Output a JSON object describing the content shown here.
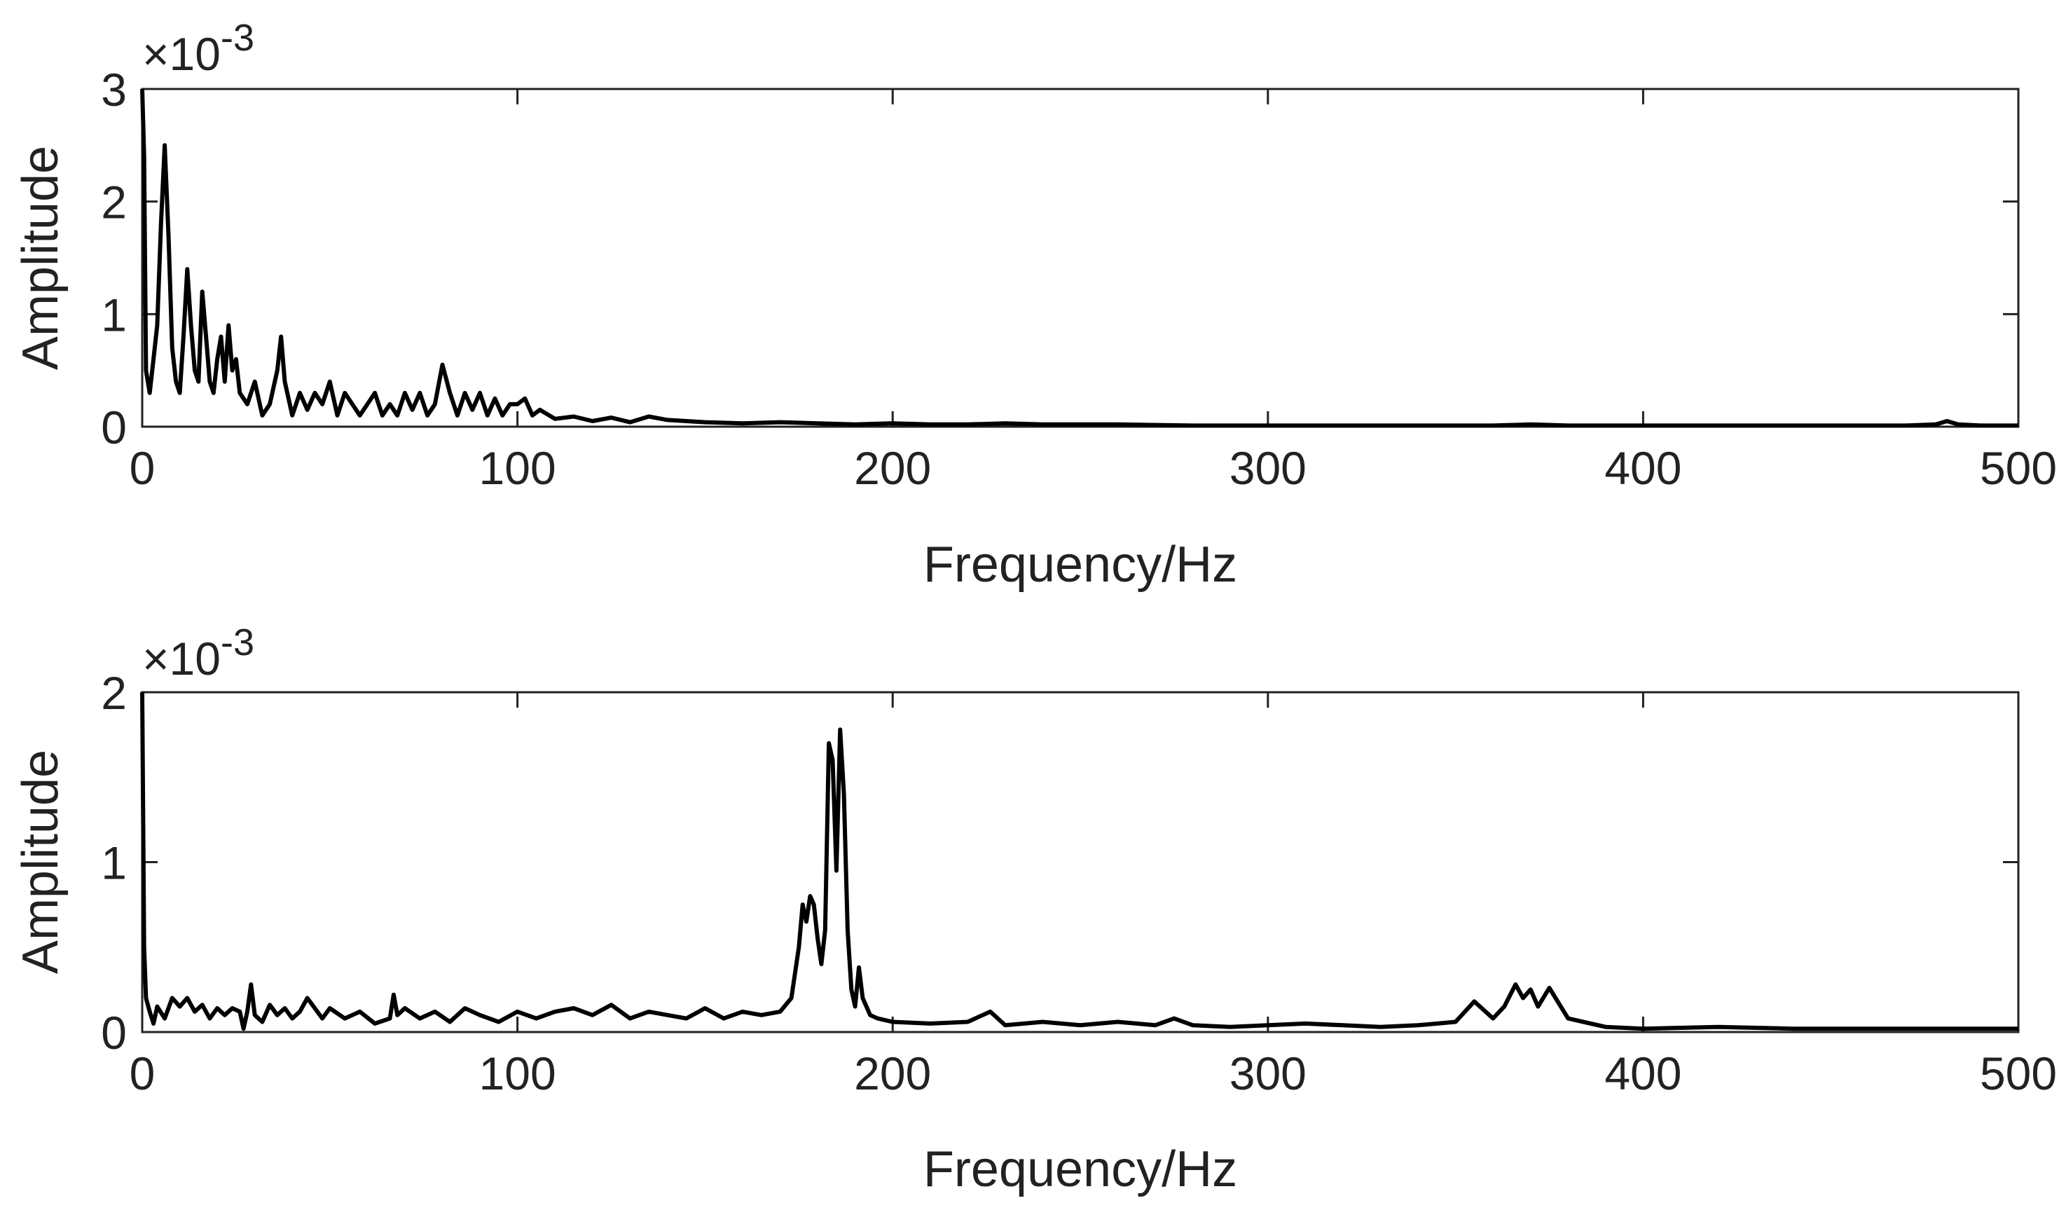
{
  "figure": {
    "background": "#ffffff",
    "line_color": "#000000",
    "text_color": "#222222"
  },
  "chart_data": [
    {
      "type": "line",
      "title": "",
      "xlabel": "Frequency/Hz",
      "ylabel": "Amplitude",
      "xlim": [
        0,
        500
      ],
      "ylim": [
        0,
        0.003
      ],
      "y_multiplier": "×10",
      "y_multiplier_exp": "-3",
      "xticks": [
        0,
        100,
        200,
        300,
        400,
        500
      ],
      "xtick_labels": [
        "0",
        "100",
        "200",
        "300",
        "400",
        "500"
      ],
      "yticks": [
        0,
        0.001,
        0.002,
        0.003
      ],
      "ytick_labels": [
        "0",
        "1",
        "2",
        "3"
      ],
      "grid": false,
      "legend": "none",
      "series": [
        {
          "color": "#000000",
          "x": [
            0,
            0.5,
            1,
            2,
            3,
            4,
            5,
            6,
            7,
            8,
            9,
            10,
            11,
            12,
            13,
            14,
            15,
            16,
            17,
            18,
            19,
            20,
            21,
            22,
            23,
            24,
            25,
            26,
            28,
            30,
            32,
            34,
            36,
            37,
            38,
            40,
            42,
            44,
            46,
            48,
            50,
            52,
            54,
            56,
            58,
            60,
            62,
            64,
            66,
            68,
            70,
            72,
            74,
            76,
            78,
            80,
            82,
            84,
            86,
            88,
            90,
            92,
            94,
            96,
            98,
            100,
            102,
            104,
            106,
            110,
            115,
            120,
            125,
            130,
            135,
            140,
            145,
            150,
            160,
            170,
            180,
            190,
            200,
            210,
            220,
            230,
            240,
            260,
            280,
            300,
            320,
            340,
            360,
            370,
            380,
            400,
            420,
            440,
            460,
            470,
            478,
            481,
            484,
            490,
            500
          ],
          "y": [
            0.003,
            0.0024,
            0.0005,
            0.0003,
            0.0006,
            0.0009,
            0.0018,
            0.0025,
            0.0017,
            0.0007,
            0.0004,
            0.0003,
            0.0008,
            0.0014,
            0.0009,
            0.0005,
            0.0004,
            0.0012,
            0.0008,
            0.0004,
            0.0003,
            0.0006,
            0.0008,
            0.0004,
            0.0009,
            0.0005,
            0.0006,
            0.0003,
            0.0002,
            0.0004,
            0.0001,
            0.0002,
            0.0005,
            0.0008,
            0.0004,
            0.0001,
            0.0003,
            0.00015,
            0.0003,
            0.0002,
            0.0004,
            0.0001,
            0.0003,
            0.0002,
            0.0001,
            0.0002,
            0.0003,
            0.0001,
            0.0002,
            0.0001,
            0.0003,
            0.00015,
            0.0003,
            0.0001,
            0.0002,
            0.00055,
            0.0003,
            0.0001,
            0.0003,
            0.00015,
            0.0003,
            0.0001,
            0.00025,
            0.0001,
            0.0002,
            0.0002,
            0.00025,
            0.0001,
            0.00015,
            7e-05,
            9e-05,
            5e-05,
            8e-05,
            4e-05,
            9e-05,
            6e-05,
            5e-05,
            4e-05,
            3e-05,
            4e-05,
            3e-05,
            2e-05,
            3e-05,
            2e-05,
            2e-05,
            3e-05,
            2e-05,
            2e-05,
            1e-05,
            1e-05,
            1e-05,
            1e-05,
            1e-05,
            2e-05,
            1e-05,
            1e-05,
            1e-05,
            1e-05,
            1e-05,
            1e-05,
            2e-05,
            5e-05,
            2e-05,
            1e-05,
            1e-05
          ]
        }
      ]
    },
    {
      "type": "line",
      "title": "",
      "xlabel": "Frequency/Hz",
      "ylabel": "Amplitude",
      "xlim": [
        0,
        500
      ],
      "ylim": [
        0,
        0.002
      ],
      "y_multiplier": "×10",
      "y_multiplier_exp": "-3",
      "xticks": [
        0,
        100,
        200,
        300,
        400,
        500
      ],
      "xtick_labels": [
        "0",
        "100",
        "200",
        "300",
        "400",
        "500"
      ],
      "yticks": [
        0,
        0.001,
        0.002
      ],
      "ytick_labels": [
        "0",
        "1",
        "2"
      ],
      "grid": false,
      "legend": "none",
      "series": [
        {
          "color": "#000000",
          "x": [
            0,
            0.5,
            1,
            2,
            3,
            4,
            6,
            8,
            10,
            12,
            14,
            16,
            18,
            20,
            22,
            24,
            26,
            27,
            28,
            29,
            30,
            32,
            34,
            36,
            38,
            40,
            42,
            44,
            46,
            48,
            50,
            54,
            58,
            62,
            66,
            67,
            68,
            70,
            74,
            78,
            82,
            86,
            90,
            95,
            100,
            105,
            110,
            115,
            120,
            125,
            130,
            135,
            140,
            145,
            150,
            155,
            160,
            165,
            170,
            173,
            175,
            176,
            177,
            178,
            179,
            180,
            181,
            182,
            183,
            184,
            185,
            186,
            187,
            188,
            189,
            190,
            191,
            192,
            194,
            196,
            200,
            210,
            220,
            226,
            230,
            240,
            250,
            260,
            270,
            275,
            280,
            290,
            300,
            310,
            320,
            330,
            340,
            350,
            355,
            360,
            363,
            366,
            368,
            370,
            372,
            375,
            380,
            390,
            400,
            420,
            440,
            460,
            480,
            500
          ],
          "y": [
            0.002,
            0.0005,
            0.0002,
            0.00012,
            5e-05,
            0.00015,
            8e-05,
            0.0002,
            0.00015,
            0.0002,
            0.00012,
            0.00016,
            8e-05,
            0.00014,
            0.0001,
            0.00014,
            0.00012,
            2e-05,
            0.00012,
            0.00028,
            0.0001,
            6e-05,
            0.00016,
            0.0001,
            0.00014,
            8e-05,
            0.00012,
            0.0002,
            0.00014,
            8e-05,
            0.00014,
            8e-05,
            0.00012,
            5e-05,
            8e-05,
            0.00022,
            0.0001,
            0.00014,
            8e-05,
            0.00012,
            6e-05,
            0.00014,
            0.0001,
            6e-05,
            0.00012,
            8e-05,
            0.00012,
            0.00014,
            0.0001,
            0.00016,
            8e-05,
            0.00012,
            0.0001,
            8e-05,
            0.00014,
            8e-05,
            0.00012,
            0.0001,
            0.00012,
            0.0002,
            0.0005,
            0.00075,
            0.00065,
            0.0008,
            0.00075,
            0.00055,
            0.0004,
            0.0006,
            0.0017,
            0.0016,
            0.00095,
            0.00178,
            0.0014,
            0.0006,
            0.00025,
            0.00015,
            0.00038,
            0.0002,
            0.0001,
            8e-05,
            6e-05,
            5e-05,
            6e-05,
            0.00012,
            4e-05,
            6e-05,
            4e-05,
            6e-05,
            4e-05,
            8e-05,
            4e-05,
            3e-05,
            4e-05,
            5e-05,
            4e-05,
            3e-05,
            4e-05,
            6e-05,
            0.00018,
            8e-05,
            0.00015,
            0.00028,
            0.0002,
            0.00025,
            0.00015,
            0.00026,
            8e-05,
            3e-05,
            2e-05,
            3e-05,
            2e-05,
            2e-05,
            2e-05,
            2e-05
          ]
        }
      ]
    }
  ]
}
